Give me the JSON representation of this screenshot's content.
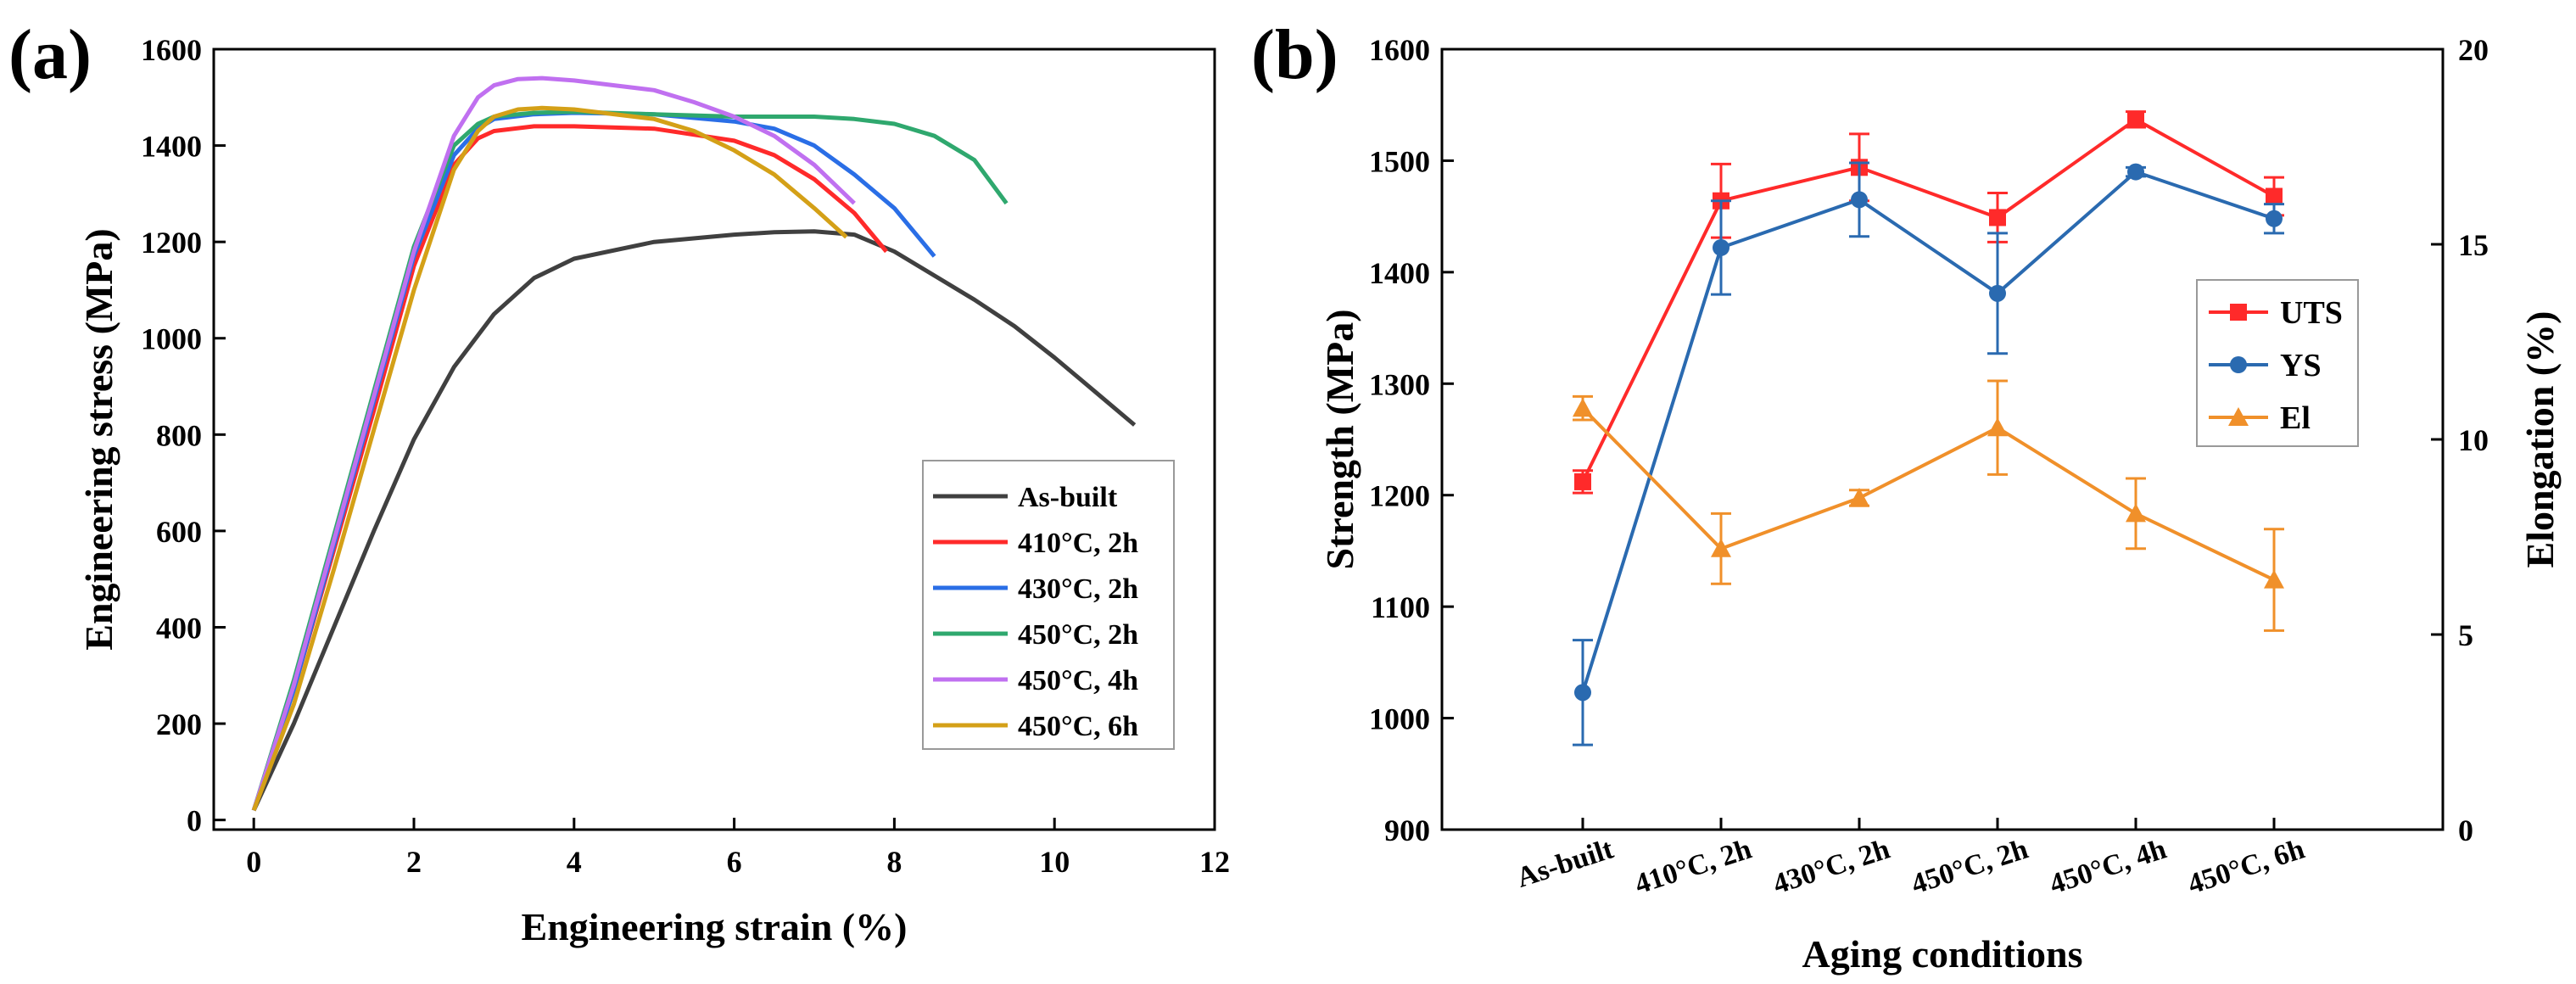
{
  "chart_data": [
    {
      "panel_label": "(a)",
      "type": "line",
      "xlabel": "Engineering strain (%)",
      "ylabel": "Engineering stress (MPa)",
      "xlim": [
        -0.5,
        12
      ],
      "ylim": [
        -20,
        1600
      ],
      "xticks": [
        0,
        2,
        4,
        6,
        8,
        10,
        12
      ],
      "yticks": [
        0,
        200,
        400,
        600,
        800,
        1000,
        1200,
        1400,
        1600
      ],
      "legend_position": "lower-right",
      "series": [
        {
          "name": "As-built",
          "color": "#404040",
          "x": [
            0,
            0.5,
            1,
            1.5,
            2,
            2.5,
            3,
            3.5,
            4,
            5,
            6,
            6.5,
            7,
            7.5,
            8,
            8.5,
            9,
            9.5,
            10,
            10.5,
            11
          ],
          "y": [
            20,
            200,
            400,
            600,
            790,
            940,
            1050,
            1125,
            1165,
            1200,
            1215,
            1220,
            1222,
            1215,
            1180,
            1130,
            1080,
            1025,
            960,
            890,
            820
          ]
        },
        {
          "name": "410°C, 2h",
          "color": "#ff2a2a",
          "x": [
            0,
            0.5,
            1,
            1.5,
            2,
            2.5,
            2.8,
            3,
            3.5,
            4,
            5,
            6,
            6.5,
            7,
            7.5,
            7.9
          ],
          "y": [
            20,
            270,
            560,
            850,
            1150,
            1360,
            1415,
            1430,
            1440,
            1440,
            1435,
            1410,
            1380,
            1330,
            1260,
            1180
          ]
        },
        {
          "name": "430°C, 2h",
          "color": "#2a6ee6",
          "x": [
            0,
            0.5,
            1,
            1.5,
            2,
            2.5,
            2.8,
            3,
            3.5,
            4,
            5,
            6,
            6.5,
            7,
            7.5,
            8,
            8.5
          ],
          "y": [
            20,
            270,
            570,
            870,
            1170,
            1380,
            1435,
            1455,
            1465,
            1468,
            1465,
            1450,
            1435,
            1400,
            1340,
            1270,
            1170
          ]
        },
        {
          "name": "450°C, 2h",
          "color": "#2fa86e",
          "x": [
            0,
            0.5,
            1,
            1.5,
            2,
            2.5,
            2.8,
            3,
            3.5,
            4,
            5,
            6,
            7,
            7.5,
            8,
            8.5,
            9,
            9.4
          ],
          "y": [
            20,
            290,
            590,
            890,
            1190,
            1400,
            1445,
            1460,
            1468,
            1470,
            1465,
            1460,
            1460,
            1455,
            1445,
            1420,
            1370,
            1280
          ]
        },
        {
          "name": "450°C, 4h",
          "color": "#c070f0",
          "x": [
            0,
            0.5,
            1,
            1.5,
            2,
            2.5,
            2.8,
            3,
            3.3,
            3.6,
            4,
            4.5,
            5,
            5.5,
            6,
            6.5,
            7,
            7.5
          ],
          "y": [
            20,
            280,
            580,
            880,
            1180,
            1420,
            1500,
            1525,
            1538,
            1540,
            1535,
            1525,
            1515,
            1490,
            1460,
            1420,
            1360,
            1280
          ]
        },
        {
          "name": "450°C, 6h",
          "color": "#d4a017",
          "x": [
            0,
            0.5,
            1,
            1.5,
            2,
            2.5,
            2.8,
            3,
            3.3,
            3.6,
            4,
            5,
            5.5,
            6,
            6.5,
            7,
            7.4
          ],
          "y": [
            20,
            240,
            520,
            810,
            1100,
            1350,
            1430,
            1460,
            1475,
            1478,
            1475,
            1455,
            1430,
            1390,
            1340,
            1270,
            1210
          ]
        }
      ]
    },
    {
      "panel_label": "(b)",
      "type": "line",
      "xlabel": "Aging conditions",
      "ylabel": "Strength (MPa)",
      "ylabel_right": "Elongation (%)",
      "categories": [
        "As-built",
        "410°C, 2h",
        "430°C, 2h",
        "450°C, 2h",
        "450°C, 4h",
        "450°C, 6h"
      ],
      "ylim": [
        900,
        1600
      ],
      "yticks": [
        900,
        1000,
        1100,
        1200,
        1300,
        1400,
        1500,
        1600
      ],
      "ylim_right": [
        0,
        20
      ],
      "yticks_right": [
        0,
        5,
        10,
        15,
        20
      ],
      "legend_position": "right",
      "series": [
        {
          "name": "UTS",
          "color": "#ff2a2a",
          "marker": "square",
          "axis": "left",
          "values": [
            1212,
            1464,
            1494,
            1449,
            1537,
            1468
          ],
          "errors": [
            10,
            33,
            30,
            22,
            7,
            17
          ]
        },
        {
          "name": "YS",
          "color": "#2a6ab0",
          "marker": "circle",
          "axis": "left",
          "values": [
            1023,
            1422,
            1465,
            1381,
            1490,
            1448
          ],
          "errors": [
            47,
            42,
            33,
            54,
            4,
            13
          ]
        },
        {
          "name": "El",
          "color": "#f0902a",
          "marker": "triangle",
          "axis": "right",
          "values": [
            10.8,
            7.2,
            8.5,
            10.3,
            8.1,
            6.4
          ],
          "errors": [
            0.3,
            0.9,
            0.2,
            1.2,
            0.9,
            1.3
          ]
        }
      ]
    }
  ]
}
